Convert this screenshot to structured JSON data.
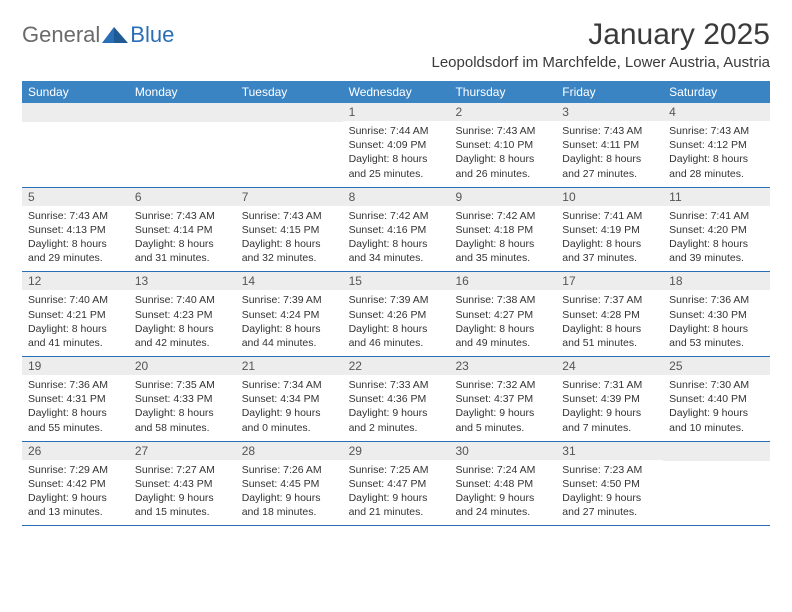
{
  "logo": {
    "general": "General",
    "blue": "Blue"
  },
  "title": "January 2025",
  "location": "Leopoldsdorf im Marchfelde, Lower Austria, Austria",
  "colors": {
    "header_bar": "#3b84c4",
    "header_text": "#ffffff",
    "rule": "#2a6fb5",
    "daynum_bg": "#ededed",
    "body_text": "#333333",
    "logo_gray": "#6a6a6a",
    "logo_blue": "#2a6fb5"
  },
  "dow": [
    "Sunday",
    "Monday",
    "Tuesday",
    "Wednesday",
    "Thursday",
    "Friday",
    "Saturday"
  ],
  "weeks": [
    [
      null,
      null,
      null,
      {
        "n": "1",
        "sr": "7:44 AM",
        "ss": "4:09 PM",
        "dl": "8 hours and 25 minutes."
      },
      {
        "n": "2",
        "sr": "7:43 AM",
        "ss": "4:10 PM",
        "dl": "8 hours and 26 minutes."
      },
      {
        "n": "3",
        "sr": "7:43 AM",
        "ss": "4:11 PM",
        "dl": "8 hours and 27 minutes."
      },
      {
        "n": "4",
        "sr": "7:43 AM",
        "ss": "4:12 PM",
        "dl": "8 hours and 28 minutes."
      }
    ],
    [
      {
        "n": "5",
        "sr": "7:43 AM",
        "ss": "4:13 PM",
        "dl": "8 hours and 29 minutes."
      },
      {
        "n": "6",
        "sr": "7:43 AM",
        "ss": "4:14 PM",
        "dl": "8 hours and 31 minutes."
      },
      {
        "n": "7",
        "sr": "7:43 AM",
        "ss": "4:15 PM",
        "dl": "8 hours and 32 minutes."
      },
      {
        "n": "8",
        "sr": "7:42 AM",
        "ss": "4:16 PM",
        "dl": "8 hours and 34 minutes."
      },
      {
        "n": "9",
        "sr": "7:42 AM",
        "ss": "4:18 PM",
        "dl": "8 hours and 35 minutes."
      },
      {
        "n": "10",
        "sr": "7:41 AM",
        "ss": "4:19 PM",
        "dl": "8 hours and 37 minutes."
      },
      {
        "n": "11",
        "sr": "7:41 AM",
        "ss": "4:20 PM",
        "dl": "8 hours and 39 minutes."
      }
    ],
    [
      {
        "n": "12",
        "sr": "7:40 AM",
        "ss": "4:21 PM",
        "dl": "8 hours and 41 minutes."
      },
      {
        "n": "13",
        "sr": "7:40 AM",
        "ss": "4:23 PM",
        "dl": "8 hours and 42 minutes."
      },
      {
        "n": "14",
        "sr": "7:39 AM",
        "ss": "4:24 PM",
        "dl": "8 hours and 44 minutes."
      },
      {
        "n": "15",
        "sr": "7:39 AM",
        "ss": "4:26 PM",
        "dl": "8 hours and 46 minutes."
      },
      {
        "n": "16",
        "sr": "7:38 AM",
        "ss": "4:27 PM",
        "dl": "8 hours and 49 minutes."
      },
      {
        "n": "17",
        "sr": "7:37 AM",
        "ss": "4:28 PM",
        "dl": "8 hours and 51 minutes."
      },
      {
        "n": "18",
        "sr": "7:36 AM",
        "ss": "4:30 PM",
        "dl": "8 hours and 53 minutes."
      }
    ],
    [
      {
        "n": "19",
        "sr": "7:36 AM",
        "ss": "4:31 PM",
        "dl": "8 hours and 55 minutes."
      },
      {
        "n": "20",
        "sr": "7:35 AM",
        "ss": "4:33 PM",
        "dl": "8 hours and 58 minutes."
      },
      {
        "n": "21",
        "sr": "7:34 AM",
        "ss": "4:34 PM",
        "dl": "9 hours and 0 minutes."
      },
      {
        "n": "22",
        "sr": "7:33 AM",
        "ss": "4:36 PM",
        "dl": "9 hours and 2 minutes."
      },
      {
        "n": "23",
        "sr": "7:32 AM",
        "ss": "4:37 PM",
        "dl": "9 hours and 5 minutes."
      },
      {
        "n": "24",
        "sr": "7:31 AM",
        "ss": "4:39 PM",
        "dl": "9 hours and 7 minutes."
      },
      {
        "n": "25",
        "sr": "7:30 AM",
        "ss": "4:40 PM",
        "dl": "9 hours and 10 minutes."
      }
    ],
    [
      {
        "n": "26",
        "sr": "7:29 AM",
        "ss": "4:42 PM",
        "dl": "9 hours and 13 minutes."
      },
      {
        "n": "27",
        "sr": "7:27 AM",
        "ss": "4:43 PM",
        "dl": "9 hours and 15 minutes."
      },
      {
        "n": "28",
        "sr": "7:26 AM",
        "ss": "4:45 PM",
        "dl": "9 hours and 18 minutes."
      },
      {
        "n": "29",
        "sr": "7:25 AM",
        "ss": "4:47 PM",
        "dl": "9 hours and 21 minutes."
      },
      {
        "n": "30",
        "sr": "7:24 AM",
        "ss": "4:48 PM",
        "dl": "9 hours and 24 minutes."
      },
      {
        "n": "31",
        "sr": "7:23 AM",
        "ss": "4:50 PM",
        "dl": "9 hours and 27 minutes."
      },
      null
    ]
  ],
  "labels": {
    "sunrise": "Sunrise:",
    "sunset": "Sunset:",
    "daylight": "Daylight:"
  }
}
